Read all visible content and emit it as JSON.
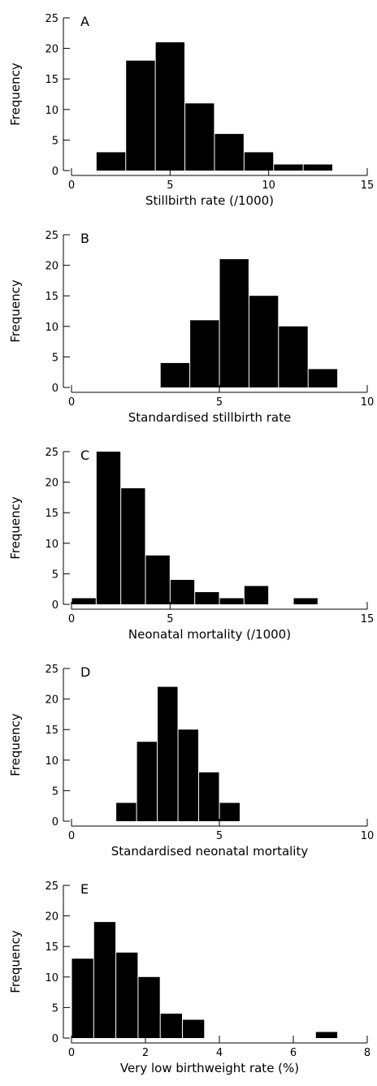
{
  "chart_data": [
    {
      "type": "bar",
      "panel_label": "A",
      "xlabel": "Stillbirth rate (/1000)",
      "ylabel": "Frequency",
      "xlim": [
        0,
        15
      ],
      "ylim": [
        0,
        25
      ],
      "x_ticks": [
        0,
        5,
        10,
        15
      ],
      "y_ticks": [
        0,
        5,
        10,
        15,
        20,
        25
      ],
      "bins": [
        {
          "x0": 1.25,
          "x1": 2.75,
          "value": 3
        },
        {
          "x0": 2.75,
          "x1": 4.25,
          "value": 18
        },
        {
          "x0": 4.25,
          "x1": 5.75,
          "value": 21
        },
        {
          "x0": 5.75,
          "x1": 7.25,
          "value": 11
        },
        {
          "x0": 7.25,
          "x1": 8.75,
          "value": 6
        },
        {
          "x0": 8.75,
          "x1": 10.25,
          "value": 3
        },
        {
          "x0": 10.25,
          "x1": 11.75,
          "value": 1
        },
        {
          "x0": 11.75,
          "x1": 13.25,
          "value": 1
        }
      ]
    },
    {
      "type": "bar",
      "panel_label": "B",
      "xlabel": "Standardised stillbirth rate",
      "ylabel": "Frequency",
      "xlim": [
        0,
        10
      ],
      "ylim": [
        0,
        25
      ],
      "x_ticks": [
        0,
        5,
        10
      ],
      "y_ticks": [
        0,
        5,
        10,
        15,
        20,
        25
      ],
      "bins": [
        {
          "x0": 3.0,
          "x1": 4.0,
          "value": 4
        },
        {
          "x0": 4.0,
          "x1": 5.0,
          "value": 11
        },
        {
          "x0": 5.0,
          "x1": 6.0,
          "value": 21
        },
        {
          "x0": 6.0,
          "x1": 7.0,
          "value": 15
        },
        {
          "x0": 7.0,
          "x1": 8.0,
          "value": 10
        },
        {
          "x0": 8.0,
          "x1": 9.0,
          "value": 3
        }
      ]
    },
    {
      "type": "bar",
      "panel_label": "C",
      "xlabel": "Neonatal mortality (/1000)",
      "ylabel": "Frequency",
      "xlim": [
        0,
        15
      ],
      "ylim": [
        0,
        25
      ],
      "x_ticks": [
        0,
        5,
        15
      ],
      "y_ticks": [
        0,
        5,
        10,
        15,
        20,
        25
      ],
      "bins": [
        {
          "x0": 0.0,
          "x1": 1.25,
          "value": 1
        },
        {
          "x0": 1.25,
          "x1": 2.5,
          "value": 25
        },
        {
          "x0": 2.5,
          "x1": 3.75,
          "value": 19
        },
        {
          "x0": 3.75,
          "x1": 5.0,
          "value": 8
        },
        {
          "x0": 5.0,
          "x1": 6.25,
          "value": 4
        },
        {
          "x0": 6.25,
          "x1": 7.5,
          "value": 2
        },
        {
          "x0": 7.5,
          "x1": 8.75,
          "value": 1
        },
        {
          "x0": 8.75,
          "x1": 10.0,
          "value": 3
        },
        {
          "x0": 11.25,
          "x1": 12.5,
          "value": 1
        }
      ]
    },
    {
      "type": "bar",
      "panel_label": "D",
      "xlabel": "Standardised neonatal mortality",
      "ylabel": "Frequency",
      "xlim": [
        0,
        10
      ],
      "ylim": [
        0,
        25
      ],
      "x_ticks": [
        0,
        5,
        10
      ],
      "y_ticks": [
        0,
        5,
        10,
        15,
        20,
        25
      ],
      "bins": [
        {
          "x0": 1.5,
          "x1": 2.2,
          "value": 3
        },
        {
          "x0": 2.2,
          "x1": 2.9,
          "value": 13
        },
        {
          "x0": 2.9,
          "x1": 3.6,
          "value": 22
        },
        {
          "x0": 3.6,
          "x1": 4.3,
          "value": 15
        },
        {
          "x0": 4.3,
          "x1": 5.0,
          "value": 8
        },
        {
          "x0": 5.0,
          "x1": 5.7,
          "value": 3
        }
      ]
    },
    {
      "type": "bar",
      "panel_label": "E",
      "xlabel": "Very low birthweight rate (%)",
      "ylabel": "Frequency",
      "xlim": [
        0,
        8
      ],
      "ylim": [
        0,
        25
      ],
      "x_ticks": [
        0,
        2,
        4,
        6,
        8
      ],
      "y_ticks": [
        0,
        5,
        10,
        15,
        20,
        25
      ],
      "bins": [
        {
          "x0": 0.0,
          "x1": 0.6,
          "value": 13
        },
        {
          "x0": 0.6,
          "x1": 1.2,
          "value": 19
        },
        {
          "x0": 1.2,
          "x1": 1.8,
          "value": 14
        },
        {
          "x0": 1.8,
          "x1": 2.4,
          "value": 10
        },
        {
          "x0": 2.4,
          "x1": 3.0,
          "value": 4
        },
        {
          "x0": 3.0,
          "x1": 3.6,
          "value": 3
        },
        {
          "x0": 6.6,
          "x1": 7.2,
          "value": 1
        }
      ]
    }
  ]
}
